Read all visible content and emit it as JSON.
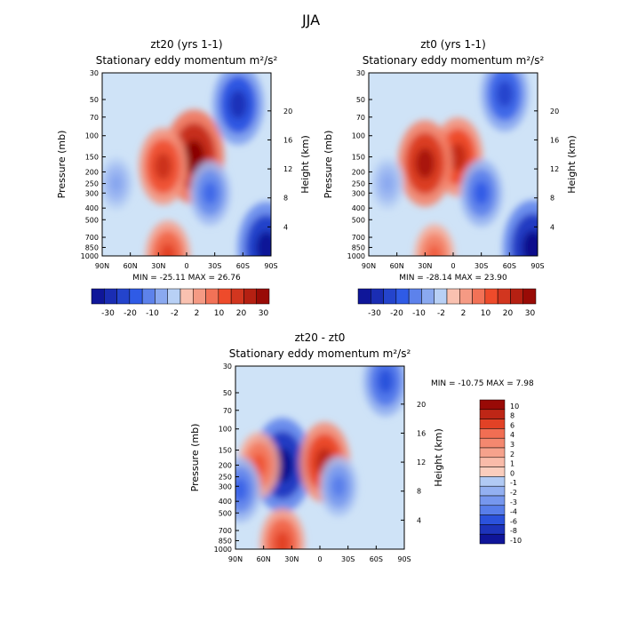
{
  "page_title": "JJA",
  "colors": {
    "blue_dark": "#0a0a8c",
    "blue_mid": "#2f5be6",
    "blue_light": "#cfe3f7",
    "red_dark": "#8b0000",
    "red_mid": "#ee4b2b",
    "red_light": "#fbd5c6",
    "neutral": "#ffffff"
  },
  "chart_data": [
    {
      "type": "heatmap",
      "title": "zt20 (yrs 1-1)",
      "subtitle": "Stationary eddy momentum  m²/s²",
      "ylabel": "Pressure (mb)",
      "y2label": "Height (km)",
      "x_ticks": [
        "90N",
        "60N",
        "30N",
        "0",
        "30S",
        "60S",
        "90S"
      ],
      "y_ticks": [
        "30",
        "50",
        "70",
        "100",
        "150",
        "200",
        "250",
        "300",
        "400",
        "500",
        "700",
        "850",
        "1000"
      ],
      "y2_ticks": [
        "20",
        "16",
        "12",
        "8",
        "4"
      ],
      "stats": "MIN = -25.11   MAX =  26.76",
      "min": -25.11,
      "max": 26.76,
      "colorbar_labels": [
        "-30",
        "-20",
        "-10",
        "-2",
        "2",
        "10",
        "20",
        "30"
      ],
      "features": [
        {
          "lat": -8,
          "pressure": 150,
          "value": 26.76
        },
        {
          "lat": 25,
          "pressure": 180,
          "value": 18
        },
        {
          "lat": 20,
          "pressure": 1000,
          "value": 15
        },
        {
          "lat": -55,
          "pressure": 55,
          "value": -20
        },
        {
          "lat": -25,
          "pressure": 300,
          "value": -12
        },
        {
          "lat": 75,
          "pressure": 250,
          "value": -6
        },
        {
          "lat": -85,
          "pressure": 850,
          "value": -25.11
        }
      ]
    },
    {
      "type": "heatmap",
      "title": "zt0 (yrs 1-1)",
      "subtitle": "Stationary eddy momentum  m²/s²",
      "ylabel": "Pressure (mb)",
      "y2label": "Height (km)",
      "x_ticks": [
        "90N",
        "60N",
        "30N",
        "0",
        "30S",
        "60S",
        "90S"
      ],
      "y_ticks": [
        "30",
        "50",
        "70",
        "100",
        "150",
        "200",
        "250",
        "300",
        "400",
        "500",
        "700",
        "850",
        "1000"
      ],
      "y2_ticks": [
        "20",
        "16",
        "12",
        "8",
        "4"
      ],
      "stats": "MIN = -28.14   MAX =  23.90",
      "min": -28.14,
      "max": 23.9,
      "colorbar_labels": [
        "-30",
        "-20",
        "-10",
        "-2",
        "2",
        "10",
        "20",
        "30"
      ],
      "features": [
        {
          "lat": -5,
          "pressure": 150,
          "value": 20
        },
        {
          "lat": 30,
          "pressure": 170,
          "value": 23.9
        },
        {
          "lat": 20,
          "pressure": 1000,
          "value": 12
        },
        {
          "lat": -55,
          "pressure": 45,
          "value": -18
        },
        {
          "lat": -30,
          "pressure": 300,
          "value": -14
        },
        {
          "lat": 70,
          "pressure": 250,
          "value": -6
        },
        {
          "lat": -85,
          "pressure": 850,
          "value": -28.14
        }
      ]
    },
    {
      "type": "heatmap",
      "title": "zt20 - zt0",
      "subtitle": "Stationary eddy momentum  m²/s²",
      "ylabel": "Pressure (mb)",
      "y2label": "Height (km)",
      "x_ticks": [
        "90N",
        "60N",
        "30N",
        "0",
        "30S",
        "60S",
        "90S"
      ],
      "y_ticks": [
        "30",
        "50",
        "70",
        "100",
        "150",
        "200",
        "250",
        "300",
        "400",
        "500",
        "700",
        "850",
        "1000"
      ],
      "y2_ticks": [
        "20",
        "16",
        "12",
        "8",
        "4"
      ],
      "stats": "MIN = -10.75   MAX =   7.98",
      "min": -10.75,
      "max": 7.98,
      "colorbar_labels": [
        "10",
        "8",
        "6",
        "4",
        "3",
        "2",
        "1",
        "0",
        "-1",
        "-2",
        "-3",
        "-4",
        "-6",
        "-8",
        "-10"
      ],
      "features": [
        {
          "lat": 40,
          "pressure": 200,
          "value": -10.75
        },
        {
          "lat": 40,
          "pressure": 900,
          "value": 6
        },
        {
          "lat": 65,
          "pressure": 200,
          "value": 5
        },
        {
          "lat": -5,
          "pressure": 190,
          "value": 7.98
        },
        {
          "lat": 85,
          "pressure": 320,
          "value": -5
        },
        {
          "lat": -20,
          "pressure": 300,
          "value": -4
        },
        {
          "lat": -70,
          "pressure": 40,
          "value": -6
        }
      ]
    }
  ]
}
